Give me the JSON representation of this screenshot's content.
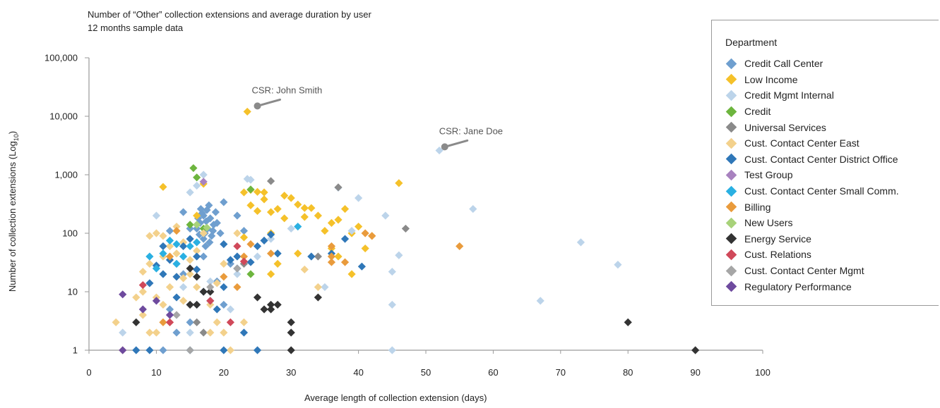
{
  "chart_data": {
    "type": "scatter",
    "title": "Number of “Other” collection extensions and average duration by user",
    "subtitle": "12 months sample data",
    "xlabel": "Average length of collection extension (days)",
    "ylabel_main": "Number of collection extensions (Log",
    "ylabel_sub": "10",
    "ylabel_close": ")",
    "xlim": [
      0,
      100
    ],
    "ylim": [
      1,
      100000
    ],
    "yscale": "log",
    "x_ticks": [
      "0",
      "10",
      "20",
      "30",
      "40",
      "50",
      "60",
      "70",
      "80",
      "90",
      "100"
    ],
    "y_ticks": [
      "1",
      "10",
      "100",
      "1,000",
      "10,000",
      "100,000"
    ],
    "grid": false,
    "legend": {
      "title": "Department",
      "position": "right"
    },
    "annotations": [
      {
        "text": "CSR: John Smith",
        "x": 25,
        "y": 15000
      },
      {
        "text": "CSR: Jane Doe",
        "x": 52.8,
        "y": 3000
      }
    ],
    "series": [
      {
        "name": "Credit Call Center",
        "color": "#6f9fcf",
        "points": [
          [
            17,
            200
          ],
          [
            17.5,
            250
          ],
          [
            18,
            180
          ],
          [
            16.5,
            150
          ],
          [
            16,
            120
          ],
          [
            17.2,
            100
          ],
          [
            18.5,
            140
          ],
          [
            17.8,
            300
          ],
          [
            16.8,
            220
          ],
          [
            17.4,
            160
          ],
          [
            18.2,
            90
          ],
          [
            17,
            80
          ],
          [
            16.2,
            180
          ],
          [
            19,
            150
          ],
          [
            18.8,
            230
          ],
          [
            17.6,
            120
          ],
          [
            16.6,
            260
          ],
          [
            17.9,
            70
          ],
          [
            17.3,
            60
          ],
          [
            16.4,
            95
          ],
          [
            18.4,
            110
          ],
          [
            15,
            120
          ],
          [
            14,
            230
          ],
          [
            22,
            200
          ],
          [
            20,
            340
          ],
          [
            19.5,
            100
          ],
          [
            21,
            30
          ],
          [
            23,
            110
          ],
          [
            12,
            110
          ],
          [
            13,
            30
          ],
          [
            14,
            20
          ],
          [
            12,
            5
          ],
          [
            13,
            2
          ],
          [
            11,
            1
          ],
          [
            15,
            3
          ],
          [
            16,
            6
          ],
          [
            20,
            6
          ],
          [
            22,
            25
          ],
          [
            17,
            40
          ],
          [
            19,
            15
          ]
        ]
      },
      {
        "name": "Low Income",
        "color": "#f5c12a",
        "points": [
          [
            23.5,
            12000
          ],
          [
            46,
            720
          ],
          [
            11,
            620
          ],
          [
            23,
            500
          ],
          [
            24,
            550
          ],
          [
            25,
            510
          ],
          [
            26,
            500
          ],
          [
            27,
            230
          ],
          [
            28,
            260
          ],
          [
            29,
            440
          ],
          [
            30,
            400
          ],
          [
            31,
            310
          ],
          [
            32,
            270
          ],
          [
            33,
            270
          ],
          [
            34,
            200
          ],
          [
            35,
            110
          ],
          [
            36,
            150
          ],
          [
            37,
            170
          ],
          [
            38,
            260
          ],
          [
            39,
            100
          ],
          [
            40,
            130
          ],
          [
            41,
            55
          ],
          [
            42,
            90
          ],
          [
            29,
            180
          ],
          [
            27,
            100
          ],
          [
            31,
            45
          ],
          [
            24,
            300
          ],
          [
            26,
            380
          ],
          [
            16,
            200
          ],
          [
            25,
            240
          ],
          [
            32,
            190
          ],
          [
            37,
            40
          ],
          [
            28,
            30
          ],
          [
            36,
            55
          ],
          [
            27,
            20
          ],
          [
            17,
            700
          ],
          [
            23,
            85
          ],
          [
            39,
            20
          ]
        ]
      },
      {
        "name": "Credit Mgmt Internal",
        "color": "#bcd4ea",
        "points": [
          [
            52,
            2600
          ],
          [
            57,
            260
          ],
          [
            73,
            70
          ],
          [
            78.5,
            29
          ],
          [
            67,
            7
          ],
          [
            45,
            1
          ],
          [
            45,
            6
          ],
          [
            45,
            22
          ],
          [
            46,
            42
          ],
          [
            44,
            200
          ],
          [
            40,
            400
          ],
          [
            37,
            600
          ],
          [
            39,
            110
          ],
          [
            35,
            12
          ],
          [
            23.5,
            850
          ],
          [
            24,
            820
          ],
          [
            17,
            1000
          ],
          [
            16,
            650
          ],
          [
            15,
            500
          ],
          [
            10,
            200
          ],
          [
            22,
            20
          ],
          [
            21,
            5
          ],
          [
            14,
            12
          ],
          [
            5,
            2
          ],
          [
            15,
            2
          ],
          [
            25,
            40
          ],
          [
            27,
            80
          ],
          [
            30,
            120
          ],
          [
            18,
            15
          ]
        ]
      },
      {
        "name": "Credit",
        "color": "#6db53e",
        "points": [
          [
            15.5,
            1300
          ],
          [
            16,
            900
          ],
          [
            15,
            140
          ],
          [
            24,
            560
          ],
          [
            24,
            20
          ],
          [
            17,
            120
          ]
        ]
      },
      {
        "name": "Universal Services",
        "color": "#8a8a8a",
        "points": [
          [
            27,
            780
          ],
          [
            37,
            610
          ],
          [
            47,
            120
          ],
          [
            16,
            3
          ],
          [
            18,
            10
          ],
          [
            17,
            2
          ],
          [
            23,
            30
          ],
          [
            34,
            40
          ],
          [
            15,
            6
          ]
        ]
      },
      {
        "name": "Cust. Contact Center East",
        "color": "#f3d18c",
        "points": [
          [
            4,
            3
          ],
          [
            5,
            1
          ],
          [
            8,
            22
          ],
          [
            9,
            90
          ],
          [
            10,
            100
          ],
          [
            11,
            40
          ],
          [
            12,
            60
          ],
          [
            13,
            130
          ],
          [
            14,
            17
          ],
          [
            15,
            35
          ],
          [
            16,
            50
          ],
          [
            17,
            100
          ],
          [
            18,
            6
          ],
          [
            19,
            3
          ],
          [
            20,
            2
          ],
          [
            21,
            1
          ],
          [
            22,
            100
          ],
          [
            23,
            3
          ],
          [
            8,
            4
          ],
          [
            9,
            2
          ],
          [
            10,
            2
          ],
          [
            11,
            6
          ],
          [
            12,
            12
          ],
          [
            13,
            18
          ],
          [
            14,
            7
          ],
          [
            10,
            8
          ],
          [
            12,
            3
          ],
          [
            9,
            30
          ],
          [
            11,
            90
          ],
          [
            8,
            10
          ],
          [
            15,
            20
          ],
          [
            13,
            45
          ],
          [
            14,
            70
          ],
          [
            19,
            14
          ],
          [
            20,
            30
          ],
          [
            32,
            24
          ],
          [
            34,
            12
          ],
          [
            7,
            8
          ],
          [
            16,
            12
          ],
          [
            18,
            2
          ]
        ]
      },
      {
        "name": "Cust. Contact Center District Office",
        "color": "#2f77b8",
        "points": [
          [
            7,
            1
          ],
          [
            9,
            1
          ],
          [
            15,
            1
          ],
          [
            20,
            1
          ],
          [
            25,
            1
          ],
          [
            9,
            14
          ],
          [
            10,
            28
          ],
          [
            11,
            20
          ],
          [
            12,
            35
          ],
          [
            13,
            18
          ],
          [
            14,
            60
          ],
          [
            15,
            80
          ],
          [
            16,
            40
          ],
          [
            17,
            10
          ],
          [
            18,
            7
          ],
          [
            19,
            5
          ],
          [
            20,
            65
          ],
          [
            21,
            35
          ],
          [
            22,
            25
          ],
          [
            23,
            2
          ],
          [
            24,
            32
          ],
          [
            25,
            60
          ],
          [
            26,
            75
          ],
          [
            27,
            95
          ],
          [
            28,
            45
          ],
          [
            33,
            40
          ],
          [
            38,
            80
          ],
          [
            40.5,
            27
          ],
          [
            36,
            45
          ],
          [
            13,
            8
          ],
          [
            11,
            60
          ],
          [
            16,
            24
          ],
          [
            20,
            12
          ],
          [
            22,
            40
          ]
        ]
      },
      {
        "name": "Test Group",
        "color": "#a882bf",
        "points": [
          [
            17,
            760
          ]
        ]
      },
      {
        "name": "Cust. Contact Center Small Comm.",
        "color": "#2ab0e2",
        "points": [
          [
            12,
            75
          ],
          [
            9,
            40
          ],
          [
            10,
            25
          ],
          [
            13,
            30
          ],
          [
            14,
            40
          ],
          [
            15,
            60
          ],
          [
            16,
            70
          ],
          [
            31,
            130
          ],
          [
            13,
            65
          ],
          [
            11,
            45
          ]
        ]
      },
      {
        "name": "Billing",
        "color": "#e99b3c",
        "points": [
          [
            11,
            3
          ],
          [
            12,
            40
          ],
          [
            24,
            65
          ],
          [
            23,
            40
          ],
          [
            27,
            45
          ],
          [
            36,
            40
          ],
          [
            36,
            60
          ],
          [
            38,
            32
          ],
          [
            41,
            100
          ],
          [
            42,
            90
          ],
          [
            55,
            60
          ],
          [
            36,
            32
          ],
          [
            13,
            110
          ],
          [
            22,
            12
          ],
          [
            20,
            18
          ]
        ]
      },
      {
        "name": "New Users",
        "color": "#a8d27a",
        "points": [
          [
            17.5,
            125
          ],
          [
            16,
            140
          ]
        ]
      },
      {
        "name": "Energy Service",
        "color": "#333333",
        "points": [
          [
            7,
            3
          ],
          [
            15,
            25
          ],
          [
            15,
            6
          ],
          [
            16,
            6
          ],
          [
            17,
            10
          ],
          [
            18,
            10
          ],
          [
            25,
            8
          ],
          [
            26,
            5
          ],
          [
            27,
            6
          ],
          [
            27,
            5
          ],
          [
            28,
            6
          ],
          [
            30,
            3
          ],
          [
            30,
            2
          ],
          [
            30,
            1
          ],
          [
            34,
            8
          ],
          [
            80,
            3
          ],
          [
            90,
            1
          ],
          [
            16,
            18
          ]
        ]
      },
      {
        "name": "Cust. Relations",
        "color": "#d0495a",
        "points": [
          [
            8,
            13
          ],
          [
            12,
            3
          ],
          [
            18,
            7
          ],
          [
            21,
            3
          ],
          [
            22,
            60
          ],
          [
            23,
            33
          ]
        ]
      },
      {
        "name": "Cust. Contact Center Mgmt",
        "color": "#a6a6a6",
        "points": [
          [
            15,
            1
          ],
          [
            18,
            12
          ],
          [
            22,
            25
          ],
          [
            13,
            4
          ]
        ]
      },
      {
        "name": "Regulatory Performance",
        "color": "#6e4a9e",
        "points": [
          [
            5,
            9
          ],
          [
            5,
            1
          ],
          [
            8,
            5
          ],
          [
            10,
            7
          ],
          [
            12,
            4
          ]
        ]
      }
    ]
  }
}
